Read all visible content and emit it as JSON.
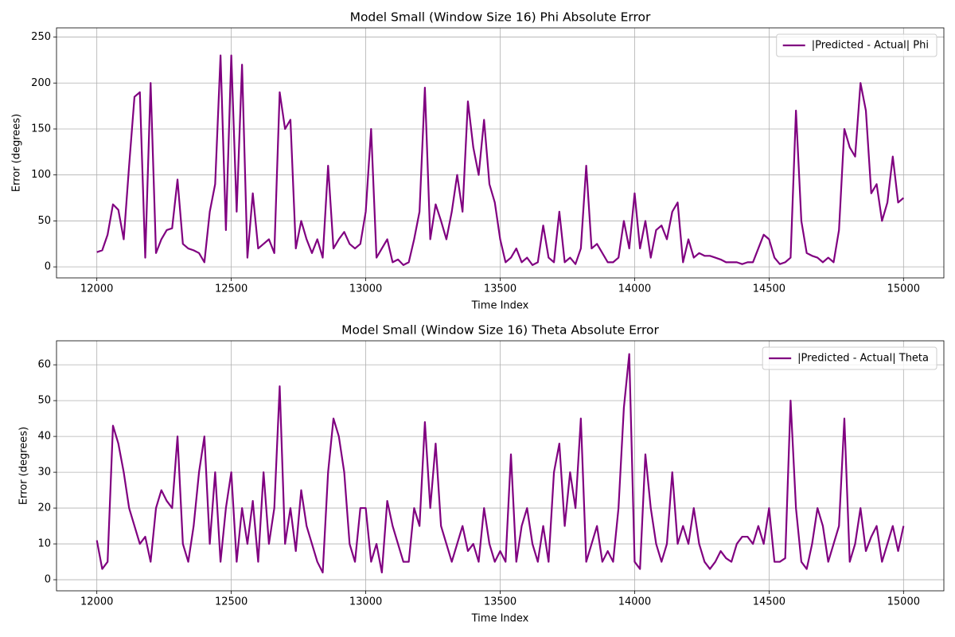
{
  "chart_data": [
    {
      "type": "line",
      "title": "Model Small (Window Size 16) Phi Absolute Error",
      "x_label": "Time Index",
      "y_label": "Error (degrees)",
      "x": [
        12000,
        12020,
        12040,
        12060,
        12080,
        12100,
        12120,
        12140,
        12160,
        12180,
        12200,
        12220,
        12240,
        12260,
        12280,
        12300,
        12320,
        12340,
        12360,
        12380,
        12400,
        12420,
        12440,
        12460,
        12480,
        12500,
        12520,
        12540,
        12560,
        12580,
        12600,
        12620,
        12640,
        12660,
        12680,
        12700,
        12720,
        12740,
        12760,
        12780,
        12800,
        12820,
        12840,
        12860,
        12880,
        12900,
        12920,
        12940,
        12960,
        12980,
        13000,
        13020,
        13040,
        13060,
        13080,
        13100,
        13120,
        13140,
        13160,
        13180,
        13200,
        13220,
        13240,
        13260,
        13280,
        13300,
        13320,
        13340,
        13360,
        13380,
        13400,
        13420,
        13440,
        13460,
        13480,
        13500,
        13520,
        13540,
        13560,
        13580,
        13600,
        13620,
        13640,
        13660,
        13680,
        13700,
        13720,
        13740,
        13760,
        13780,
        13800,
        13820,
        13840,
        13860,
        13880,
        13900,
        13920,
        13940,
        13960,
        13980,
        14000,
        14020,
        14040,
        14060,
        14080,
        14100,
        14120,
        14140,
        14160,
        14180,
        14200,
        14220,
        14240,
        14260,
        14280,
        14300,
        14320,
        14340,
        14360,
        14380,
        14400,
        14420,
        14440,
        14460,
        14480,
        14500,
        14520,
        14540,
        14560,
        14580,
        14600,
        14620,
        14640,
        14660,
        14680,
        14700,
        14720,
        14740,
        14760,
        14780,
        14800,
        14820,
        14840,
        14860,
        14880,
        14900,
        14920,
        14940,
        14960,
        14980,
        15000
      ],
      "series": [
        {
          "name": "|Predicted - Actual| Phi",
          "color": "#800080",
          "values": [
            16,
            18,
            35,
            68,
            62,
            30,
            110,
            185,
            190,
            10,
            200,
            15,
            30,
            40,
            42,
            95,
            25,
            20,
            18,
            15,
            5,
            60,
            90,
            230,
            40,
            230,
            60,
            220,
            10,
            80,
            20,
            25,
            30,
            15,
            190,
            150,
            160,
            20,
            50,
            30,
            15,
            30,
            10,
            110,
            20,
            30,
            38,
            25,
            20,
            25,
            60,
            150,
            10,
            20,
            30,
            5,
            8,
            2,
            5,
            30,
            60,
            195,
            30,
            68,
            50,
            30,
            60,
            100,
            60,
            180,
            130,
            100,
            160,
            90,
            70,
            30,
            5,
            10,
            20,
            5,
            10,
            2,
            5,
            45,
            10,
            5,
            60,
            5,
            10,
            3,
            20,
            110,
            20,
            25,
            15,
            5,
            5,
            10,
            50,
            20,
            80,
            20,
            50,
            10,
            40,
            45,
            30,
            60,
            70,
            5,
            30,
            10,
            15,
            12,
            12,
            10,
            8,
            5,
            5,
            5,
            3,
            5,
            5,
            20,
            35,
            30,
            10,
            3,
            5,
            10,
            170,
            50,
            15,
            12,
            10,
            5,
            10,
            5,
            40,
            150,
            130,
            120,
            200,
            170,
            80,
            90,
            50,
            70,
            120,
            70,
            75
          ]
        }
      ],
      "xlim": [
        11850,
        15150
      ],
      "ylim": [
        -12,
        260
      ],
      "xticks": [
        12000,
        12500,
        13000,
        13500,
        14000,
        14500,
        15000
      ],
      "yticks": [
        0,
        50,
        100,
        150,
        200,
        250
      ],
      "grid": true,
      "legend": "upper right"
    },
    {
      "type": "line",
      "title": "Model Small (Window Size 16) Theta Absolute Error",
      "x_label": "Time Index",
      "y_label": "Error (degrees)",
      "x": [
        12000,
        12020,
        12040,
        12060,
        12080,
        12100,
        12120,
        12140,
        12160,
        12180,
        12200,
        12220,
        12240,
        12260,
        12280,
        12300,
        12320,
        12340,
        12360,
        12380,
        12400,
        12420,
        12440,
        12460,
        12480,
        12500,
        12520,
        12540,
        12560,
        12580,
        12600,
        12620,
        12640,
        12660,
        12680,
        12700,
        12720,
        12740,
        12760,
        12780,
        12800,
        12820,
        12840,
        12860,
        12880,
        12900,
        12920,
        12940,
        12960,
        12980,
        13000,
        13020,
        13040,
        13060,
        13080,
        13100,
        13120,
        13140,
        13160,
        13180,
        13200,
        13220,
        13240,
        13260,
        13280,
        13300,
        13320,
        13340,
        13360,
        13380,
        13400,
        13420,
        13440,
        13460,
        13480,
        13500,
        13520,
        13540,
        13560,
        13580,
        13600,
        13620,
        13640,
        13660,
        13680,
        13700,
        13720,
        13740,
        13760,
        13780,
        13800,
        13820,
        13840,
        13860,
        13880,
        13900,
        13920,
        13940,
        13960,
        13980,
        14000,
        14020,
        14040,
        14060,
        14080,
        14100,
        14120,
        14140,
        14160,
        14180,
        14200,
        14220,
        14240,
        14260,
        14280,
        14300,
        14320,
        14340,
        14360,
        14380,
        14400,
        14420,
        14440,
        14460,
        14480,
        14500,
        14520,
        14540,
        14560,
        14580,
        14600,
        14620,
        14640,
        14660,
        14680,
        14700,
        14720,
        14740,
        14760,
        14780,
        14800,
        14820,
        14840,
        14860,
        14880,
        14900,
        14920,
        14940,
        14960,
        14980,
        15000
      ],
      "series": [
        {
          "name": "|Predicted - Actual| Theta",
          "color": "#800080",
          "values": [
            11,
            3,
            5,
            43,
            38,
            30,
            20,
            15,
            10,
            12,
            5,
            20,
            25,
            22,
            20,
            40,
            10,
            5,
            15,
            30,
            40,
            10,
            30,
            5,
            20,
            30,
            5,
            20,
            10,
            22,
            5,
            30,
            10,
            20,
            54,
            10,
            20,
            8,
            25,
            15,
            10,
            5,
            2,
            30,
            45,
            40,
            30,
            10,
            5,
            20,
            20,
            5,
            10,
            2,
            22,
            15,
            10,
            5,
            5,
            20,
            15,
            44,
            20,
            38,
            15,
            10,
            5,
            10,
            15,
            8,
            10,
            5,
            20,
            10,
            5,
            8,
            5,
            35,
            5,
            15,
            20,
            10,
            5,
            15,
            5,
            30,
            38,
            15,
            30,
            20,
            45,
            5,
            10,
            15,
            5,
            8,
            5,
            20,
            48,
            63,
            5,
            3,
            35,
            20,
            10,
            5,
            10,
            30,
            10,
            15,
            10,
            20,
            10,
            5,
            3,
            5,
            8,
            6,
            5,
            10,
            12,
            12,
            10,
            15,
            10,
            20,
            5,
            5,
            6,
            50,
            20,
            5,
            3,
            10,
            20,
            15,
            5,
            10,
            15,
            45,
            5,
            10,
            20,
            8,
            12,
            15,
            5,
            10,
            15,
            8,
            15
          ]
        }
      ],
      "xlim": [
        11850,
        15150
      ],
      "ylim": [
        -3.1,
        66.7
      ],
      "xticks": [
        12000,
        12500,
        13000,
        13500,
        14000,
        14500,
        15000
      ],
      "yticks": [
        0,
        10,
        20,
        30,
        40,
        50,
        60
      ],
      "grid": true,
      "legend": "upper right"
    }
  ]
}
